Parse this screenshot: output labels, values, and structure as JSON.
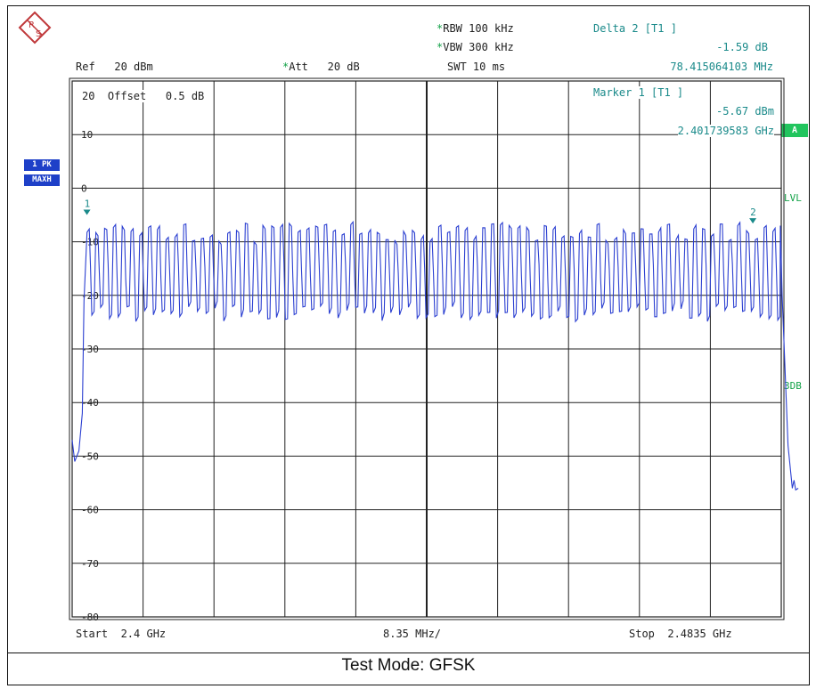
{
  "header": {
    "ref_label": "Ref",
    "ref_value": "20 dBm",
    "att_label": "Att",
    "att_value": "20 dB",
    "rbw_label": "RBW",
    "rbw_value": "100 kHz",
    "vbw_label": "VBW",
    "vbw_value": "300 kHz",
    "swt_label": "SWT",
    "swt_value": "10 ms",
    "offset_text": "20  Offset   0.5 dB"
  },
  "delta_marker": {
    "title": "Delta 2 [T1 ]",
    "level": "-1.59 dB",
    "freq": "78.415064103 MHz"
  },
  "marker1": {
    "title": "Marker 1 [T1 ]",
    "level": "-5.67 dBm",
    "freq": "2.401739583 GHz"
  },
  "side": {
    "trace_box_1": "1 PK",
    "trace_box_2": "MAXH",
    "badge_a": "A",
    "lvl": "LVL",
    "db3": "3DB"
  },
  "footer": {
    "start": "Start  2.4 GHz",
    "span": "8.35 MHz/",
    "stop": "Stop  2.4835 GHz"
  },
  "caption": "Test Mode: GFSK",
  "colors": {
    "trace": "#2b3fd1",
    "marker": "#1a8a8a",
    "accent_green": "#22c55e",
    "trace_box": "#1e40c8"
  },
  "chart_data": {
    "type": "line",
    "x_start_ghz": 2.4,
    "x_stop_ghz": 2.4835,
    "x_div_mhz": 8.35,
    "ylim": [
      -80,
      20
    ],
    "y_ticks": [
      "10",
      "0",
      "-10",
      "-20",
      "-30",
      "-40",
      "-50",
      "-60",
      "-70",
      "-80"
    ],
    "grid": true,
    "series": [
      {
        "hops": 79,
        "peak_dbm": -6.5,
        "trough_dbm": -22,
        "x": [
          2.4,
          2.4003,
          2.4012,
          2.4017,
          2.4835,
          2.4836,
          2.4843,
          2.4848,
          2.4855
        ],
        "y": [
          -47,
          -51,
          -42,
          -7,
          -8,
          -20,
          -48,
          -56,
          -56
        ]
      }
    ],
    "markers": [
      {
        "label": "1",
        "x_ghz": 2.401739583,
        "y_dbm": -5.67
      },
      {
        "label": "2",
        "x_ghz": 2.480154647,
        "y_dbm": -7.26
      }
    ]
  }
}
